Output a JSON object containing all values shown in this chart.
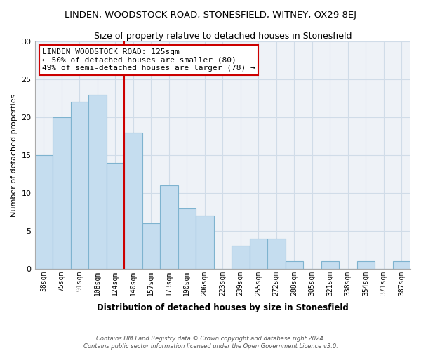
{
  "title": "LINDEN, WOODSTOCK ROAD, STONESFIELD, WITNEY, OX29 8EJ",
  "subtitle": "Size of property relative to detached houses in Stonesfield",
  "xlabel": "Distribution of detached houses by size in Stonesfield",
  "ylabel": "Number of detached properties",
  "bar_labels": [
    "58sqm",
    "75sqm",
    "91sqm",
    "108sqm",
    "124sqm",
    "140sqm",
    "157sqm",
    "173sqm",
    "190sqm",
    "206sqm",
    "223sqm",
    "239sqm",
    "255sqm",
    "272sqm",
    "288sqm",
    "305sqm",
    "321sqm",
    "338sqm",
    "354sqm",
    "371sqm",
    "387sqm"
  ],
  "bar_values": [
    15,
    20,
    22,
    23,
    14,
    18,
    6,
    11,
    8,
    7,
    0,
    3,
    4,
    4,
    1,
    0,
    1,
    0,
    1,
    0,
    1
  ],
  "bar_color": "#c5ddef",
  "bar_edge_color": "#7eb3cf",
  "vline_x": 4.5,
  "vline_color": "#cc0000",
  "annotation_title": "LINDEN WOODSTOCK ROAD: 125sqm",
  "annotation_line1": "← 50% of detached houses are smaller (80)",
  "annotation_line2": "49% of semi-detached houses are larger (78) →",
  "annotation_box_color": "#ffffff",
  "annotation_box_edge_color": "#cc0000",
  "grid_color": "#d0dce8",
  "background_color": "#eef2f7",
  "footer_line1": "Contains HM Land Registry data © Crown copyright and database right 2024.",
  "footer_line2": "Contains public sector information licensed under the Open Government Licence v3.0.",
  "ylim": [
    0,
    30
  ],
  "yticks": [
    0,
    5,
    10,
    15,
    20,
    25,
    30
  ]
}
